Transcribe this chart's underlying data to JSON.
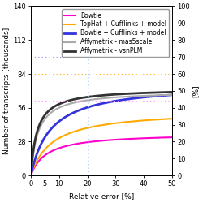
{
  "title": "",
  "xlabel": "Relative error [%]",
  "ylabel": "Number of transcripts [thousands]",
  "ylabel_right": "[%]",
  "ylim_left": [
    0,
    140
  ],
  "ylim_right": [
    0,
    100
  ],
  "xlim": [
    0,
    50
  ],
  "yticks_left": [
    0,
    28,
    56,
    84,
    112,
    140
  ],
  "yticks_right": [
    0,
    10,
    20,
    30,
    40,
    50,
    60,
    70,
    80,
    90,
    100
  ],
  "xticks": [
    0,
    5,
    10,
    20,
    30,
    40,
    50
  ],
  "lines": [
    {
      "label": "Bowtie",
      "color": "#ff00cc",
      "lw": 1.5,
      "A": 35,
      "k": 5.5
    },
    {
      "label": "TopHat + Cufflinks + model",
      "color": "#ffaa00",
      "lw": 1.5,
      "A": 54,
      "k": 7.5
    },
    {
      "label": "Bowtie + Cufflinks + model",
      "color": "#3333dd",
      "lw": 2.0,
      "A": 76,
      "k": 7.0
    },
    {
      "label": "Affymetrix - mas5scale",
      "color": "#aaaaaa",
      "lw": 1.5,
      "A": 70,
      "k": 2.5
    },
    {
      "label": "Affymetrix - vsnPLM",
      "color": "#333333",
      "lw": 2.0,
      "A": 72,
      "k": 2.2
    }
  ],
  "hlines": [
    {
      "y": 98,
      "color": "#8888ff",
      "lw": 0.8
    },
    {
      "y": 84,
      "color": "#ffaa00",
      "lw": 0.8
    },
    {
      "y": 62,
      "color": "#ff88ff",
      "lw": 0.8
    }
  ],
  "vline_x": 20,
  "vline_color": "#aaccff",
  "bg_color": "#ffffff",
  "legend_fontsize": 5.5,
  "axis_fontsize": 6.5,
  "tick_fontsize": 6.0
}
